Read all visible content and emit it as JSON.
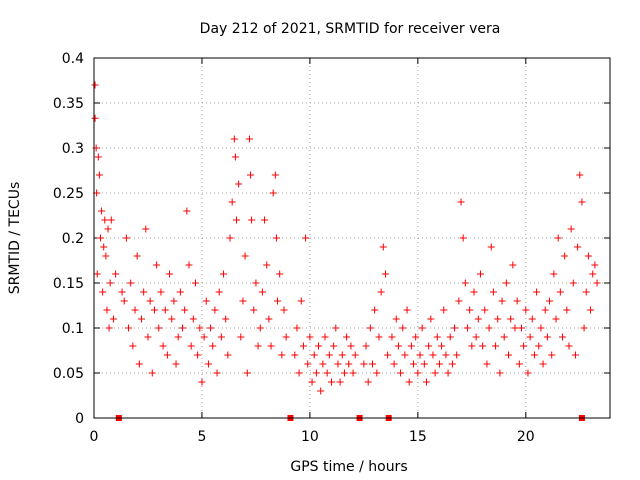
{
  "chart_data": {
    "type": "scatter",
    "title": "Day 212 of 2021, SRMTID for receiver vera",
    "xlabel": "GPS time / hours",
    "ylabel": "SRMTID / TECUs",
    "xlim": [
      0,
      23.9
    ],
    "ylim": [
      0,
      0.4
    ],
    "x_ticks": [
      0,
      5,
      10,
      15,
      20
    ],
    "x_tick_labels": [
      "0",
      "5",
      "10",
      "15",
      "20"
    ],
    "y_ticks": [
      0,
      0.05,
      0.1,
      0.15,
      0.2,
      0.25,
      0.3,
      0.35,
      0.4
    ],
    "y_tick_labels": [
      "0",
      "0.05",
      "0.1",
      "0.15",
      "0.2",
      "0.25",
      "0.3",
      "0.35",
      "0.4"
    ],
    "grid": true,
    "marker": "+",
    "color": "#ff0000",
    "gap_markers_x": [
      1.15,
      9.1,
      12.3,
      13.65,
      22.6
    ],
    "series": [
      {
        "name": "SRMTID",
        "points": [
          [
            0.05,
            0.37
          ],
          [
            0.05,
            0.333
          ],
          [
            0.1,
            0.3
          ],
          [
            0.12,
            0.25
          ],
          [
            0.15,
            0.16
          ],
          [
            0.2,
            0.29
          ],
          [
            0.25,
            0.27
          ],
          [
            0.3,
            0.2
          ],
          [
            0.35,
            0.23
          ],
          [
            0.4,
            0.14
          ],
          [
            0.45,
            0.19
          ],
          [
            0.5,
            0.22
          ],
          [
            0.55,
            0.18
          ],
          [
            0.6,
            0.12
          ],
          [
            0.65,
            0.21
          ],
          [
            0.7,
            0.1
          ],
          [
            0.75,
            0.15
          ],
          [
            0.8,
            0.22
          ],
          [
            0.9,
            0.11
          ],
          [
            1.0,
            0.16
          ],
          [
            1.3,
            0.14
          ],
          [
            1.4,
            0.13
          ],
          [
            1.5,
            0.2
          ],
          [
            1.6,
            0.1
          ],
          [
            1.7,
            0.15
          ],
          [
            1.8,
            0.08
          ],
          [
            1.9,
            0.12
          ],
          [
            2.0,
            0.18
          ],
          [
            2.1,
            0.06
          ],
          [
            2.2,
            0.11
          ],
          [
            2.3,
            0.14
          ],
          [
            2.4,
            0.21
          ],
          [
            2.5,
            0.09
          ],
          [
            2.6,
            0.13
          ],
          [
            2.7,
            0.05
          ],
          [
            2.8,
            0.12
          ],
          [
            2.9,
            0.17
          ],
          [
            3.0,
            0.1
          ],
          [
            3.1,
            0.14
          ],
          [
            3.2,
            0.08
          ],
          [
            3.3,
            0.12
          ],
          [
            3.4,
            0.07
          ],
          [
            3.5,
            0.16
          ],
          [
            3.6,
            0.11
          ],
          [
            3.7,
            0.13
          ],
          [
            3.8,
            0.06
          ],
          [
            3.9,
            0.09
          ],
          [
            4.0,
            0.14
          ],
          [
            4.1,
            0.1
          ],
          [
            4.2,
            0.12
          ],
          [
            4.3,
            0.23
          ],
          [
            4.4,
            0.17
          ],
          [
            4.5,
            0.08
          ],
          [
            4.6,
            0.11
          ],
          [
            4.7,
            0.15
          ],
          [
            4.8,
            0.07
          ],
          [
            4.9,
            0.1
          ],
          [
            5.0,
            0.04
          ],
          [
            5.1,
            0.09
          ],
          [
            5.2,
            0.13
          ],
          [
            5.3,
            0.06
          ],
          [
            5.4,
            0.1
          ],
          [
            5.5,
            0.08
          ],
          [
            5.6,
            0.12
          ],
          [
            5.7,
            0.05
          ],
          [
            5.8,
            0.14
          ],
          [
            5.9,
            0.09
          ],
          [
            6.0,
            0.16
          ],
          [
            6.1,
            0.11
          ],
          [
            6.2,
            0.07
          ],
          [
            6.3,
            0.2
          ],
          [
            6.4,
            0.24
          ],
          [
            6.5,
            0.31
          ],
          [
            6.55,
            0.29
          ],
          [
            6.6,
            0.22
          ],
          [
            6.7,
            0.26
          ],
          [
            6.8,
            0.09
          ],
          [
            6.9,
            0.13
          ],
          [
            7.0,
            0.18
          ],
          [
            7.1,
            0.05
          ],
          [
            7.2,
            0.31
          ],
          [
            7.25,
            0.27
          ],
          [
            7.3,
            0.22
          ],
          [
            7.4,
            0.12
          ],
          [
            7.5,
            0.15
          ],
          [
            7.6,
            0.08
          ],
          [
            7.7,
            0.1
          ],
          [
            7.8,
            0.14
          ],
          [
            7.9,
            0.22
          ],
          [
            8.0,
            0.17
          ],
          [
            8.1,
            0.11
          ],
          [
            8.2,
            0.08
          ],
          [
            8.3,
            0.25
          ],
          [
            8.4,
            0.27
          ],
          [
            8.45,
            0.2
          ],
          [
            8.5,
            0.13
          ],
          [
            8.6,
            0.16
          ],
          [
            8.7,
            0.07
          ],
          [
            8.8,
            0.12
          ],
          [
            8.9,
            0.09
          ],
          [
            9.3,
            0.07
          ],
          [
            9.4,
            0.1
          ],
          [
            9.5,
            0.05
          ],
          [
            9.6,
            0.13
          ],
          [
            9.7,
            0.08
          ],
          [
            9.8,
            0.2
          ],
          [
            9.9,
            0.06
          ],
          [
            10.0,
            0.09
          ],
          [
            10.1,
            0.04
          ],
          [
            10.2,
            0.07
          ],
          [
            10.3,
            0.05
          ],
          [
            10.4,
            0.08
          ],
          [
            10.5,
            0.03
          ],
          [
            10.6,
            0.06
          ],
          [
            10.7,
            0.09
          ],
          [
            10.8,
            0.05
          ],
          [
            10.9,
            0.07
          ],
          [
            11.0,
            0.04
          ],
          [
            11.1,
            0.08
          ],
          [
            11.2,
            0.1
          ],
          [
            11.3,
            0.06
          ],
          [
            11.4,
            0.04
          ],
          [
            11.5,
            0.07
          ],
          [
            11.6,
            0.05
          ],
          [
            11.7,
            0.09
          ],
          [
            11.8,
            0.06
          ],
          [
            11.9,
            0.08
          ],
          [
            12.0,
            0.05
          ],
          [
            12.1,
            0.07
          ],
          [
            12.5,
            0.06
          ],
          [
            12.6,
            0.08
          ],
          [
            12.7,
            0.04
          ],
          [
            12.8,
            0.1
          ],
          [
            12.9,
            0.06
          ],
          [
            13.0,
            0.12
          ],
          [
            13.1,
            0.05
          ],
          [
            13.2,
            0.09
          ],
          [
            13.3,
            0.14
          ],
          [
            13.4,
            0.19
          ],
          [
            13.5,
            0.16
          ],
          [
            13.6,
            0.07
          ],
          [
            13.8,
            0.09
          ],
          [
            13.9,
            0.06
          ],
          [
            14.0,
            0.11
          ],
          [
            14.1,
            0.08
          ],
          [
            14.2,
            0.05
          ],
          [
            14.3,
            0.1
          ],
          [
            14.4,
            0.07
          ],
          [
            14.5,
            0.12
          ],
          [
            14.6,
            0.04
          ],
          [
            14.7,
            0.08
          ],
          [
            14.8,
            0.06
          ],
          [
            14.9,
            0.09
          ],
          [
            15.0,
            0.05
          ],
          [
            15.1,
            0.07
          ],
          [
            15.2,
            0.1
          ],
          [
            15.3,
            0.06
          ],
          [
            15.4,
            0.04
          ],
          [
            15.5,
            0.08
          ],
          [
            15.6,
            0.11
          ],
          [
            15.7,
            0.07
          ],
          [
            15.8,
            0.05
          ],
          [
            15.9,
            0.09
          ],
          [
            16.0,
            0.06
          ],
          [
            16.1,
            0.08
          ],
          [
            16.2,
            0.12
          ],
          [
            16.3,
            0.07
          ],
          [
            16.4,
            0.05
          ],
          [
            16.5,
            0.09
          ],
          [
            16.6,
            0.06
          ],
          [
            16.7,
            0.1
          ],
          [
            16.8,
            0.07
          ],
          [
            16.9,
            0.13
          ],
          [
            17.0,
            0.24
          ],
          [
            17.1,
            0.2
          ],
          [
            17.2,
            0.15
          ],
          [
            17.3,
            0.1
          ],
          [
            17.4,
            0.12
          ],
          [
            17.5,
            0.08
          ],
          [
            17.6,
            0.14
          ],
          [
            17.7,
            0.09
          ],
          [
            17.8,
            0.11
          ],
          [
            17.9,
            0.16
          ],
          [
            18.0,
            0.08
          ],
          [
            18.1,
            0.12
          ],
          [
            18.2,
            0.06
          ],
          [
            18.3,
            0.1
          ],
          [
            18.4,
            0.19
          ],
          [
            18.5,
            0.14
          ],
          [
            18.6,
            0.08
          ],
          [
            18.7,
            0.11
          ],
          [
            18.8,
            0.05
          ],
          [
            18.9,
            0.13
          ],
          [
            19.0,
            0.09
          ],
          [
            19.1,
            0.15
          ],
          [
            19.2,
            0.07
          ],
          [
            19.3,
            0.11
          ],
          [
            19.4,
            0.17
          ],
          [
            19.5,
            0.1
          ],
          [
            19.6,
            0.13
          ],
          [
            19.7,
            0.06
          ],
          [
            19.8,
            0.1
          ],
          [
            19.9,
            0.08
          ],
          [
            20.0,
            0.12
          ],
          [
            20.1,
            0.05
          ],
          [
            20.2,
            0.09
          ],
          [
            20.3,
            0.11
          ],
          [
            20.4,
            0.07
          ],
          [
            20.5,
            0.14
          ],
          [
            20.6,
            0.08
          ],
          [
            20.7,
            0.1
          ],
          [
            20.8,
            0.06
          ],
          [
            20.9,
            0.12
          ],
          [
            21.0,
            0.09
          ],
          [
            21.1,
            0.13
          ],
          [
            21.2,
            0.07
          ],
          [
            21.3,
            0.16
          ],
          [
            21.4,
            0.11
          ],
          [
            21.5,
            0.2
          ],
          [
            21.6,
            0.14
          ],
          [
            21.7,
            0.09
          ],
          [
            21.8,
            0.18
          ],
          [
            21.9,
            0.12
          ],
          [
            22.0,
            0.08
          ],
          [
            22.1,
            0.21
          ],
          [
            22.2,
            0.15
          ],
          [
            22.3,
            0.07
          ],
          [
            22.4,
            0.19
          ],
          [
            22.5,
            0.27
          ],
          [
            22.6,
            0.24
          ],
          [
            22.7,
            0.1
          ],
          [
            22.8,
            0.14
          ],
          [
            22.9,
            0.18
          ],
          [
            23.0,
            0.12
          ],
          [
            23.1,
            0.16
          ],
          [
            23.2,
            0.17
          ],
          [
            23.3,
            0.15
          ]
        ]
      }
    ]
  }
}
